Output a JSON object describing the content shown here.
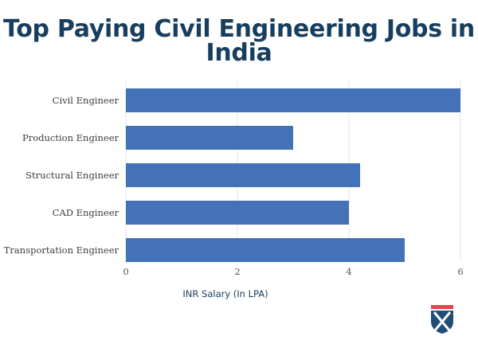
{
  "chart_data": {
    "type": "bar",
    "orientation": "horizontal",
    "title": "Top Paying Civil Engineering Jobs in India",
    "categories": [
      "Civil Engineer",
      "Production Engineer",
      "Structural Engineer",
      "CAD Engineer",
      "Transportation Engineer"
    ],
    "values": [
      6,
      3,
      4.2,
      4,
      5
    ],
    "xlabel": "INR Salary (In LPA)",
    "ylabel": "",
    "xlim": [
      0,
      6
    ],
    "xticks": [
      0,
      2,
      4,
      6
    ],
    "grid": true,
    "bar_color": "#4472b8",
    "grid_color": "#e6e6e6"
  },
  "logo": {
    "icon": "shield-logo-icon",
    "colors": [
      "#e8434f",
      "#1f4e79",
      "#ffffff"
    ]
  }
}
